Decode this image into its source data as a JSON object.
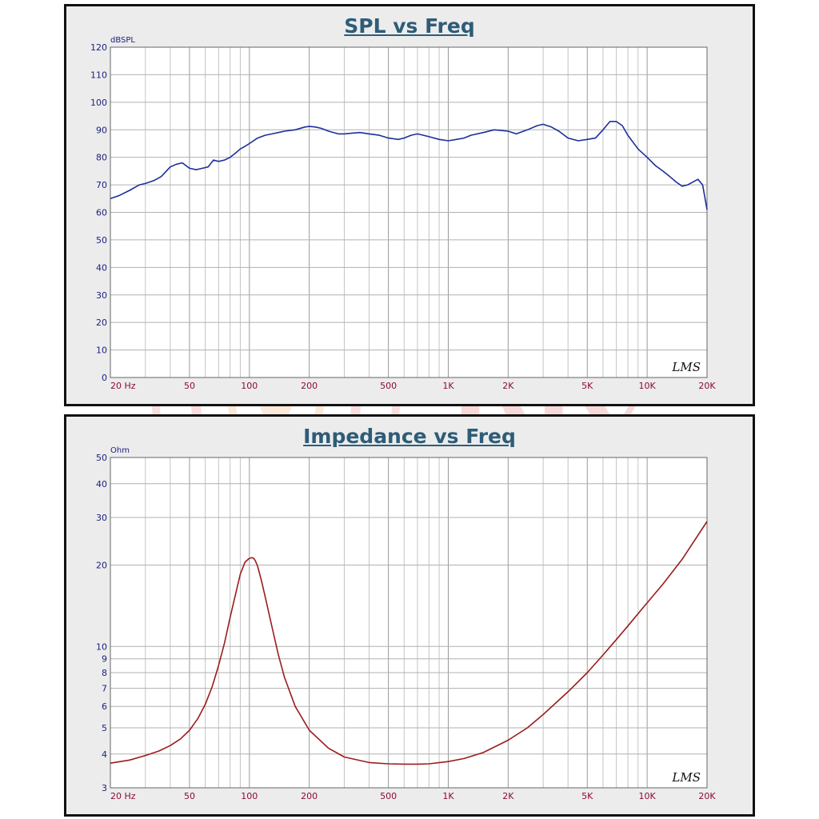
{
  "chart_data": [
    {
      "type": "line",
      "title": "SPL vs Freq",
      "ylabel": "dBSPL",
      "xlabel": "",
      "xscale": "log",
      "xlim": [
        20,
        20000
      ],
      "ylim": [
        0,
        120
      ],
      "grid": true,
      "xticklabels": [
        {
          "value": 20,
          "label": "20 Hz"
        },
        {
          "value": 50,
          "label": "50"
        },
        {
          "value": 100,
          "label": "100"
        },
        {
          "value": 200,
          "label": "200"
        },
        {
          "value": 500,
          "label": "500"
        },
        {
          "value": 1000,
          "label": "1K"
        },
        {
          "value": 2000,
          "label": "2K"
        },
        {
          "value": 5000,
          "label": "5K"
        },
        {
          "value": 10000,
          "label": "10K"
        },
        {
          "value": 20000,
          "label": "20K"
        }
      ],
      "yticks": [
        0,
        10,
        20,
        30,
        40,
        50,
        60,
        70,
        80,
        90,
        100,
        110,
        120
      ],
      "series": [
        {
          "color": "#1c2f9a",
          "x": [
            20,
            22,
            25,
            28,
            30,
            33,
            36,
            40,
            43,
            46,
            50,
            54,
            58,
            62,
            66,
            70,
            75,
            80,
            85,
            90,
            95,
            100,
            110,
            120,
            130,
            140,
            150,
            170,
            190,
            200,
            215,
            230,
            250,
            280,
            300,
            330,
            360,
            400,
            450,
            500,
            560,
            600,
            650,
            700,
            750,
            800,
            900,
            1000,
            1100,
            1200,
            1300,
            1500,
            1700,
            2000,
            2200,
            2500,
            2800,
            3000,
            3300,
            3600,
            4000,
            4500,
            5000,
            5500,
            6000,
            6500,
            7000,
            7500,
            8000,
            9000,
            10000,
            11000,
            12000,
            13000,
            14000,
            15000,
            16000,
            17000,
            18000,
            19000,
            20000
          ],
          "y": [
            65,
            66,
            68,
            70,
            70.5,
            71.5,
            73,
            76.5,
            77.5,
            78,
            76,
            75.5,
            76,
            76.5,
            79,
            78.5,
            79,
            80,
            81.5,
            83,
            84,
            85,
            87,
            88,
            88.5,
            89,
            89.5,
            90,
            91,
            91.2,
            91,
            90.5,
            89.5,
            88.5,
            88.5,
            88.8,
            89,
            88.5,
            88,
            87,
            86.5,
            87,
            88,
            88.5,
            88,
            87.5,
            86.5,
            86,
            86.5,
            87,
            88,
            89,
            90,
            89.5,
            88.5,
            90,
            91.5,
            92,
            91,
            89.5,
            87,
            86,
            86.5,
            87,
            90,
            93,
            93,
            91.5,
            88,
            83,
            80,
            77,
            75,
            73,
            71,
            69.5,
            70,
            71,
            72,
            70,
            61
          ]
        }
      ],
      "annotations": [
        "LMS"
      ]
    },
    {
      "type": "line",
      "title": "Impedance vs Freq",
      "ylabel": "Ohm",
      "xlabel": "",
      "xscale": "log",
      "yscale": "log",
      "xlim": [
        20,
        20000
      ],
      "ylim": [
        3,
        50
      ],
      "grid": true,
      "xticklabels": [
        {
          "value": 20,
          "label": "20 Hz"
        },
        {
          "value": 50,
          "label": "50"
        },
        {
          "value": 100,
          "label": "100"
        },
        {
          "value": 200,
          "label": "200"
        },
        {
          "value": 500,
          "label": "500"
        },
        {
          "value": 1000,
          "label": "1K"
        },
        {
          "value": 2000,
          "label": "2K"
        },
        {
          "value": 5000,
          "label": "5K"
        },
        {
          "value": 10000,
          "label": "10K"
        },
        {
          "value": 20000,
          "label": "20K"
        }
      ],
      "yticks": [
        3,
        4,
        5,
        6,
        7,
        8,
        9,
        10,
        20,
        30,
        40,
        50
      ],
      "series": [
        {
          "color": "#9b1c1c",
          "x": [
            20,
            25,
            30,
            35,
            40,
            45,
            50,
            55,
            60,
            65,
            70,
            75,
            80,
            85,
            90,
            95,
            100,
            103,
            105,
            107,
            110,
            115,
            120,
            130,
            140,
            150,
            170,
            200,
            250,
            300,
            400,
            500,
            600,
            700,
            800,
            1000,
            1200,
            1500,
            2000,
            2500,
            3000,
            4000,
            5000,
            6000,
            7000,
            8000,
            10000,
            12000,
            15000,
            20000
          ],
          "y": [
            3.7,
            3.8,
            3.95,
            4.1,
            4.3,
            4.55,
            4.9,
            5.4,
            6.1,
            7.1,
            8.5,
            10.3,
            12.8,
            15.5,
            18.5,
            20.5,
            21.2,
            21.3,
            21.2,
            20.8,
            19.8,
            17.5,
            15.3,
            11.8,
            9.3,
            7.7,
            6.0,
            4.9,
            4.2,
            3.9,
            3.72,
            3.68,
            3.67,
            3.67,
            3.68,
            3.75,
            3.85,
            4.05,
            4.5,
            5.0,
            5.6,
            6.8,
            8.0,
            9.3,
            10.6,
            11.9,
            14.5,
            17.0,
            21.0,
            29.0
          ]
        }
      ],
      "annotations": [
        "LMS"
      ]
    }
  ]
}
